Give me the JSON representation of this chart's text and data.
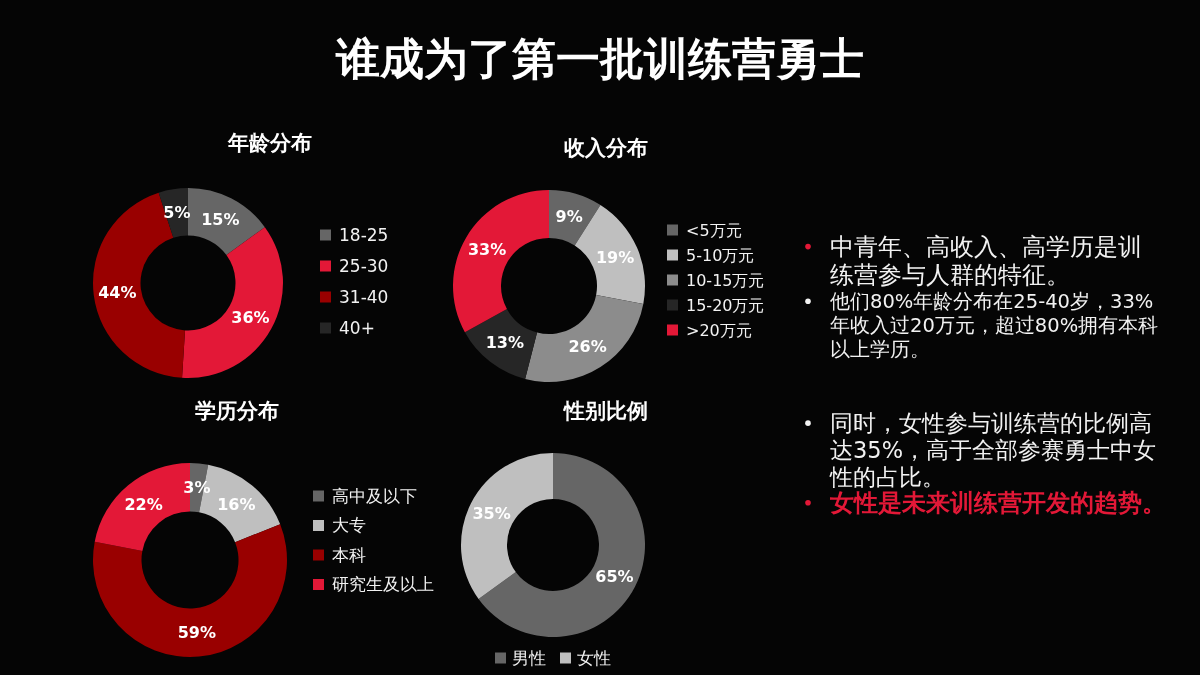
{
  "chart_data": [
    {
      "type": "other",
      "title": "谁成为了第一批训练营勇士"
    },
    {
      "type": "donut",
      "title": "年龄分布",
      "categories": [
        "18-25",
        "25-30",
        "31-40",
        "40+"
      ],
      "values": [
        15,
        36,
        44,
        5
      ],
      "value_labels": [
        "15%",
        "36%",
        "44%",
        "5%"
      ],
      "colors": [
        "#666666",
        "#e31837",
        "#990000",
        "#262626"
      ],
      "legend": "right"
    },
    {
      "type": "donut",
      "title": "收入分布",
      "categories": [
        "<5万元",
        "5-10万元",
        "10-15万元",
        "15-20万元",
        ">20万元"
      ],
      "values": [
        9,
        19,
        26,
        13,
        33
      ],
      "value_labels": [
        "9%",
        "19%",
        "26%",
        "13%",
        "33%"
      ],
      "colors": [
        "#666666",
        "#bfbfbf",
        "#8c8c8c",
        "#262626",
        "#e31837"
      ],
      "legend": "right"
    },
    {
      "type": "donut",
      "title": "学历分布",
      "categories": [
        "高中及以下",
        "大专",
        "本科",
        "研究生及以上"
      ],
      "values": [
        3,
        16,
        59,
        22
      ],
      "value_labels": [
        "3%",
        "16%",
        "59%",
        "22%"
      ],
      "colors": [
        "#666666",
        "#bfbfbf",
        "#990000",
        "#e31837"
      ],
      "legend": "right"
    },
    {
      "type": "donut",
      "title": "性别比例",
      "categories": [
        "男性",
        "女性"
      ],
      "values": [
        65,
        35
      ],
      "value_labels": [
        "65%",
        "35%"
      ],
      "colors": [
        "#666666",
        "#bfbfbf"
      ],
      "legend": "bottom"
    },
    {
      "type": "other",
      "annotations": [
        "中青年、高收入、高学历是训练营参与人群的特征。",
        "他们80%年龄分布在25-40岁，33%年收入过20万元，超过80%拥有本科以上学历。",
        "同时，女性参与训练营的比例高达35%，高于全部参赛勇士中女性的占比。",
        "女性是未来训练营开发的趋势。"
      ]
    }
  ]
}
